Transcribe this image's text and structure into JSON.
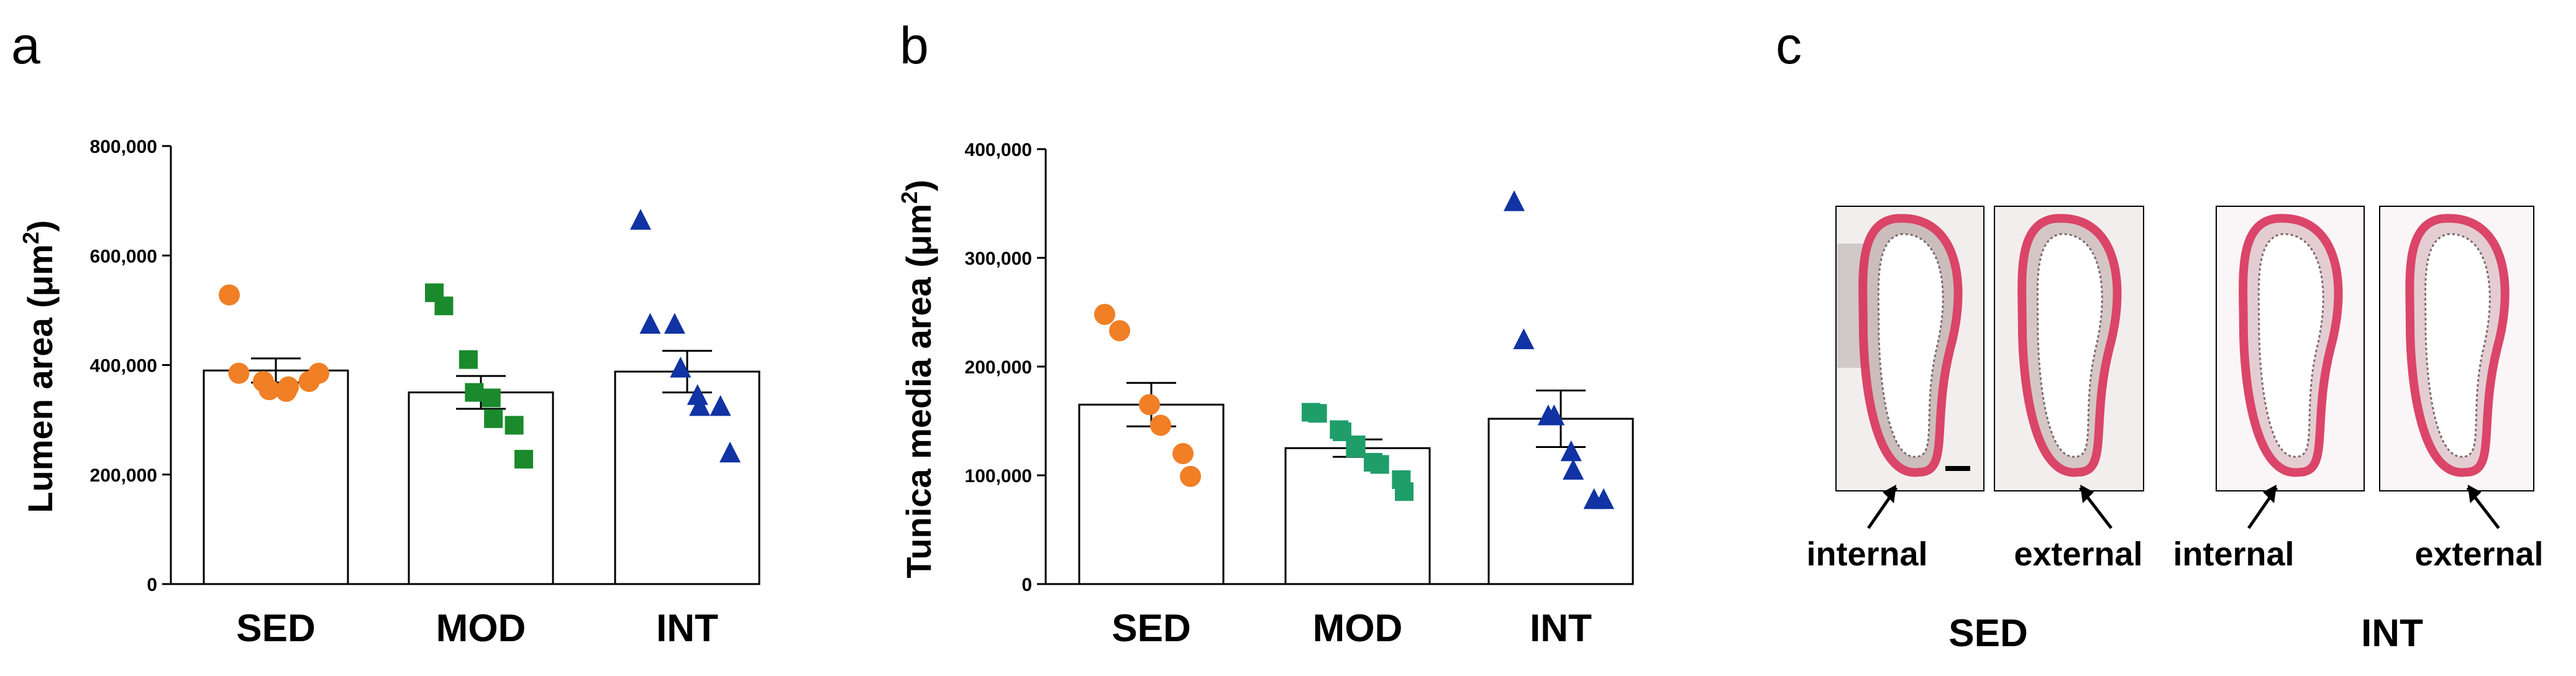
{
  "panels": {
    "a": "a",
    "b": "b",
    "c": "c"
  },
  "chart_data": [
    {
      "id": "a",
      "type": "bar",
      "title": "",
      "xlabel": "",
      "ylabel": "Lumen area (μm2)",
      "ylabel_main": "Lumen area (",
      "ylabel_unit": "μm",
      "ylabel_exp": "2",
      "ylabel_close": ")",
      "ylim": [
        0,
        800000
      ],
      "yticks": [
        0,
        200000,
        400000,
        600000,
        800000
      ],
      "ytick_labels": [
        "0",
        "200,000",
        "400,000",
        "600,000",
        "800,000"
      ],
      "categories": [
        "SED",
        "MOD",
        "INT"
      ],
      "means": [
        390000,
        350000,
        388000
      ],
      "sem": [
        22000,
        30000,
        38000
      ],
      "points": [
        {
          "group": "SED",
          "marker": "circle",
          "color": "#F07F26",
          "values": [
            528000,
            385000,
            370000,
            355000,
            352000,
            360000,
            370000,
            385000
          ]
        },
        {
          "group": "MOD",
          "marker": "square",
          "color": "#1A8A2C",
          "values": [
            532000,
            508000,
            410000,
            350000,
            340000,
            302000,
            290000,
            228000
          ]
        },
        {
          "group": "INT",
          "marker": "triangle",
          "color": "#1133A3",
          "values": [
            665000,
            475000,
            475000,
            395000,
            345000,
            325000,
            325000,
            240000
          ]
        }
      ]
    },
    {
      "id": "b",
      "type": "bar",
      "title": "",
      "xlabel": "",
      "ylabel": "Tunica media area (μm2)",
      "ylabel_main": "Tunica media area (",
      "ylabel_unit": "μm",
      "ylabel_exp": "2",
      "ylabel_close": ")",
      "ylim": [
        0,
        400000
      ],
      "yticks": [
        0,
        100000,
        200000,
        300000,
        400000
      ],
      "ytick_labels": [
        "0",
        "100,000",
        "200,000",
        "300,000",
        "400,000"
      ],
      "categories": [
        "SED",
        "MOD",
        "INT"
      ],
      "means": [
        165000,
        125000,
        152000
      ],
      "sem": [
        20000,
        8000,
        26000
      ],
      "points": [
        {
          "group": "SED",
          "marker": "circle",
          "color": "#F07F26",
          "values": [
            248000,
            233000,
            165000,
            146000,
            120000,
            99000
          ]
        },
        {
          "group": "MOD",
          "marker": "square",
          "color": "#1F9E6A",
          "values": [
            158000,
            157000,
            142000,
            140000,
            128000,
            125000,
            112000,
            110000,
            96000,
            85000
          ]
        },
        {
          "group": "INT",
          "marker": "triangle",
          "color": "#1133A3",
          "values": [
            352000,
            225000,
            155000,
            155000,
            122000,
            105000,
            78000,
            78000
          ]
        }
      ]
    }
  ],
  "micrographs": {
    "sed_label": "SED",
    "int_label": "INT",
    "images": [
      {
        "label": "internal",
        "group": "SED",
        "stain": "#D8335A",
        "tissue": "#C8B8B8"
      },
      {
        "label": "external",
        "group": "SED",
        "stain": "#D8335A",
        "tissue": "#D2C2C2"
      },
      {
        "label": "internal",
        "group": "INT",
        "stain": "#D8335A",
        "tissue": "#E2C9CF"
      },
      {
        "label": "external",
        "group": "INT",
        "stain": "#D8335A",
        "tissue": "#E2C9CF"
      }
    ]
  }
}
